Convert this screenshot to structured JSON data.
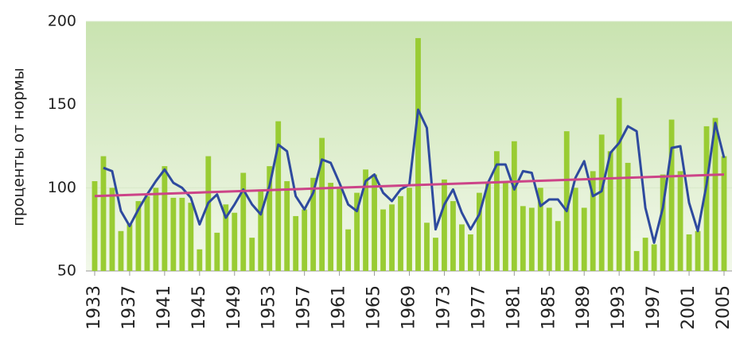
{
  "chart_data": {
    "type": "bar",
    "ylabel": "проценты от нормы",
    "x": [
      1933,
      1934,
      1935,
      1936,
      1937,
      1938,
      1939,
      1940,
      1941,
      1942,
      1943,
      1944,
      1945,
      1946,
      1947,
      1948,
      1949,
      1950,
      1951,
      1952,
      1953,
      1954,
      1955,
      1956,
      1957,
      1958,
      1959,
      1960,
      1961,
      1962,
      1963,
      1964,
      1965,
      1966,
      1967,
      1968,
      1969,
      1970,
      1971,
      1972,
      1973,
      1974,
      1975,
      1976,
      1977,
      1978,
      1979,
      1980,
      1981,
      1982,
      1983,
      1984,
      1985,
      1986,
      1987,
      1988,
      1989,
      1990,
      1991,
      1992,
      1993,
      1994,
      1995,
      1996,
      1997,
      1998,
      1999,
      2000,
      2001,
      2002,
      2003,
      2004,
      2005
    ],
    "xlim": [
      1933,
      2005
    ],
    "xticks": [
      1933,
      1937,
      1941,
      1945,
      1949,
      1953,
      1957,
      1961,
      1965,
      1969,
      1973,
      1977,
      1981,
      1985,
      1989,
      1993,
      1997,
      2001,
      2005
    ],
    "ylim": [
      50,
      200
    ],
    "yticks": [
      50,
      100,
      150,
      200
    ],
    "grid": true,
    "series": [
      {
        "type": "bar",
        "color": "#99cc33",
        "values": [
          104,
          119,
          100,
          74,
          78,
          92,
          95,
          100,
          113,
          94,
          94,
          91,
          63,
          119,
          73,
          90,
          85,
          109,
          70,
          98,
          113,
          140,
          104,
          83,
          87,
          106,
          130,
          103,
          100,
          75,
          97,
          111,
          108,
          87,
          90,
          95,
          100,
          190,
          79,
          70,
          105,
          92,
          78,
          72,
          97,
          103,
          122,
          104,
          128,
          89,
          88,
          100,
          88,
          80,
          134,
          100,
          88,
          110,
          132,
          122,
          154,
          115,
          62,
          70,
          66,
          108,
          141,
          110,
          72,
          74,
          137,
          142,
          119
        ]
      },
      {
        "type": "line",
        "color": "#2e4a9e",
        "values": [
          null,
          112,
          110,
          86,
          77,
          87,
          96,
          104,
          111,
          103,
          100,
          94,
          78,
          91,
          96,
          82,
          90,
          99,
          90,
          84,
          101,
          126,
          122,
          95,
          87,
          97,
          117,
          115,
          103,
          90,
          86,
          104,
          108,
          97,
          92,
          99,
          102,
          147,
          136,
          75,
          90,
          99,
          85,
          75,
          84,
          103,
          114,
          114,
          99,
          110,
          109,
          89,
          93,
          93,
          86,
          106,
          116,
          95,
          98,
          121,
          127,
          137,
          134,
          88,
          67,
          88,
          124,
          125,
          91,
          74,
          102,
          139,
          118
        ]
      },
      {
        "type": "line",
        "color": "#cc4488",
        "x": [
          1933,
          2005
        ],
        "values": [
          95,
          108
        ]
      }
    ]
  }
}
